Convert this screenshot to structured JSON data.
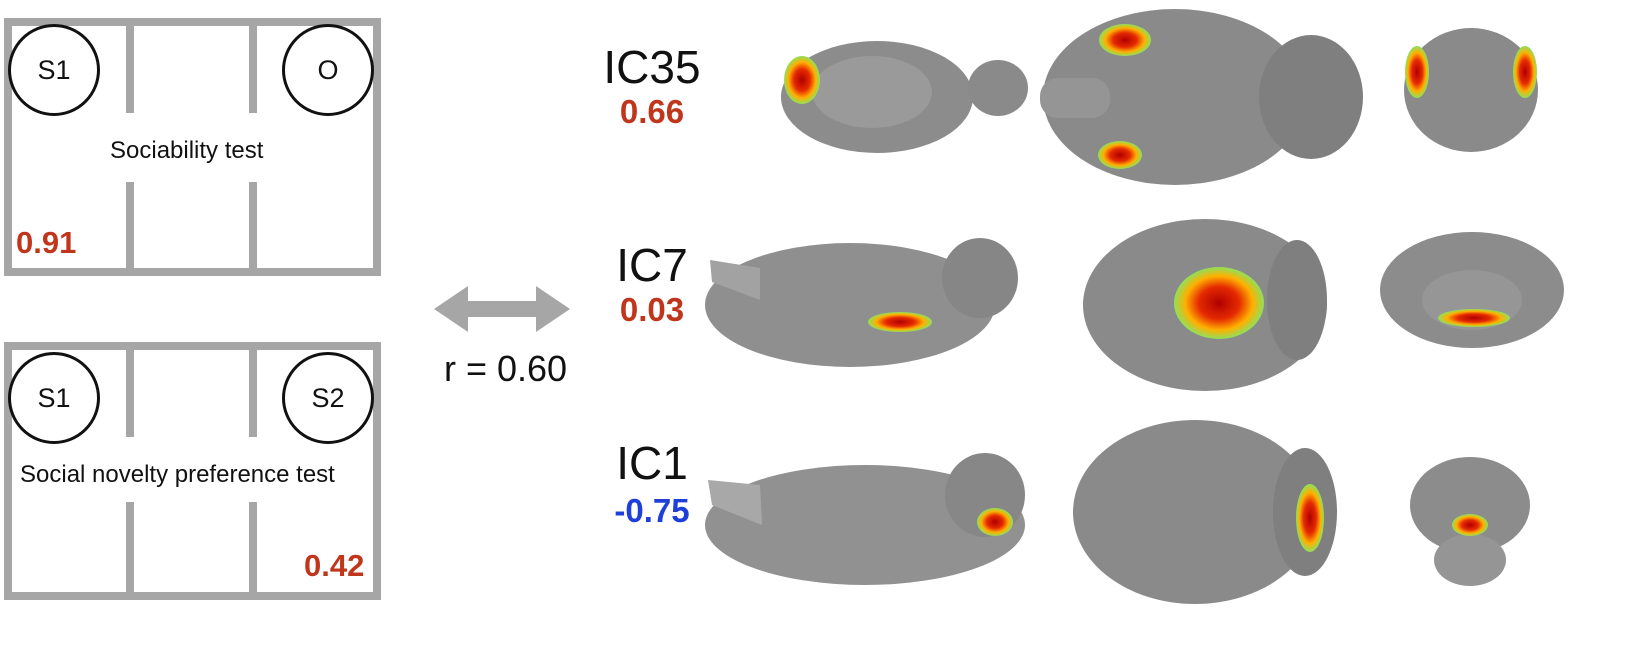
{
  "colors": {
    "positive": "#c0361c",
    "negative": "#1e3fd8",
    "wall": "#a6a6a6",
    "arrow": "#a6a6a6"
  },
  "tests": [
    {
      "left_circle": "S1",
      "right_circle": "O",
      "label": "Sociability test",
      "score": "0.91"
    },
    {
      "left_circle": "S1",
      "right_circle": "S2",
      "label": "Social novelty preference test",
      "score": "0.42"
    }
  ],
  "correlation": {
    "label": "r = 0.60"
  },
  "components": [
    {
      "name": "IC35",
      "value": "0.66",
      "sign": "positive"
    },
    {
      "name": "IC7",
      "value": "0.03",
      "sign": "positive"
    },
    {
      "name": "IC1",
      "value": "-0.75",
      "sign": "negative"
    }
  ]
}
